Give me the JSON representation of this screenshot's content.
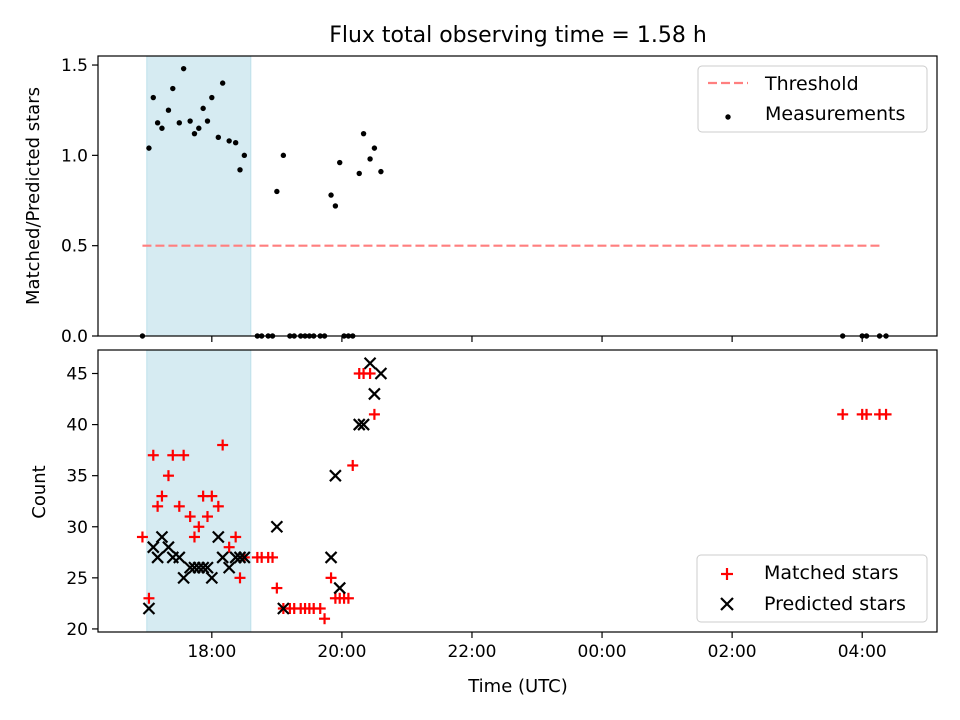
{
  "figure": {
    "title": "Flux total observing time = 1.58 h"
  },
  "colors": {
    "highlight": "#add8e6",
    "threshold": "#ff7f7f",
    "measurement": "#000000",
    "matched": "#ff0000",
    "predicted": "#000000"
  },
  "chart_data": [
    {
      "type": "scatter",
      "ylabel": "Matched/Predicted stars",
      "ylim": [
        0,
        1.55
      ],
      "yticks": [
        0.0,
        0.5,
        1.0,
        1.5
      ],
      "ytick_labels": [
        "0.0",
        "0.5",
        "1.0",
        "1.5"
      ],
      "xlim_hours": [
        16.25,
        29.15
      ],
      "highlight_span": [
        "17:00",
        "18:36"
      ],
      "legend_position": "upper right",
      "threshold": {
        "name": "Threshold",
        "value": 0.5,
        "x_range": [
          "16:56",
          "28:18"
        ]
      },
      "series": [
        {
          "name": "Measurements",
          "points": [
            [
              "16:56",
              0.0
            ],
            [
              "17:02",
              1.04
            ],
            [
              "17:06",
              1.32
            ],
            [
              "17:10",
              1.18
            ],
            [
              "17:14",
              1.15
            ],
            [
              "17:20",
              1.25
            ],
            [
              "17:24",
              1.37
            ],
            [
              "17:30",
              1.18
            ],
            [
              "17:34",
              1.48
            ],
            [
              "17:40",
              1.19
            ],
            [
              "17:44",
              1.12
            ],
            [
              "17:48",
              1.15
            ],
            [
              "17:52",
              1.26
            ],
            [
              "17:56",
              1.19
            ],
            [
              "18:00",
              1.32
            ],
            [
              "18:06",
              1.1
            ],
            [
              "18:10",
              1.4
            ],
            [
              "18:16",
              1.08
            ],
            [
              "18:22",
              1.07
            ],
            [
              "18:26",
              0.92
            ],
            [
              "18:30",
              1.0
            ],
            [
              "18:42",
              0.0
            ],
            [
              "18:46",
              0.0
            ],
            [
              "18:52",
              0.0
            ],
            [
              "18:56",
              0.0
            ],
            [
              "19:00",
              0.8
            ],
            [
              "19:06",
              1.0
            ],
            [
              "19:12",
              0.0
            ],
            [
              "19:16",
              0.0
            ],
            [
              "19:22",
              0.0
            ],
            [
              "19:26",
              0.0
            ],
            [
              "19:30",
              0.0
            ],
            [
              "19:34",
              0.0
            ],
            [
              "19:40",
              0.0
            ],
            [
              "19:44",
              0.0
            ],
            [
              "19:50",
              0.78
            ],
            [
              "19:54",
              0.72
            ],
            [
              "19:58",
              0.96
            ],
            [
              "20:02",
              0.0
            ],
            [
              "20:06",
              0.0
            ],
            [
              "20:10",
              0.0
            ],
            [
              "20:16",
              0.9
            ],
            [
              "20:20",
              1.12
            ],
            [
              "20:26",
              0.98
            ],
            [
              "20:30",
              1.04
            ],
            [
              "20:36",
              0.91
            ],
            [
              "27:42",
              0.0
            ],
            [
              "28:00",
              0.0
            ],
            [
              "28:04",
              0.0
            ],
            [
              "28:16",
              0.0
            ],
            [
              "28:22",
              0.0
            ]
          ]
        }
      ]
    },
    {
      "type": "scatter",
      "xlabel": "Time (UTC)",
      "ylabel": "Count",
      "ylim": [
        19.7,
        47.3
      ],
      "yticks": [
        20,
        25,
        30,
        35,
        40,
        45
      ],
      "ytick_labels": [
        "20",
        "25",
        "30",
        "35",
        "40",
        "45"
      ],
      "xlim_hours": [
        16.25,
        29.15
      ],
      "xticks_hours": [
        18,
        20,
        22,
        24,
        26,
        28
      ],
      "xtick_labels": [
        "18:00",
        "20:00",
        "22:00",
        "00:00",
        "02:00",
        "04:00"
      ],
      "highlight_span": [
        "17:00",
        "18:36"
      ],
      "legend_position": "lower right",
      "series": [
        {
          "name": "Matched stars",
          "marker": "plus",
          "points": [
            [
              "16:56",
              29
            ],
            [
              "17:02",
              23
            ],
            [
              "17:06",
              37
            ],
            [
              "17:10",
              32
            ],
            [
              "17:14",
              33
            ],
            [
              "17:20",
              35
            ],
            [
              "17:24",
              37
            ],
            [
              "17:30",
              32
            ],
            [
              "17:34",
              37
            ],
            [
              "17:40",
              31
            ],
            [
              "17:44",
              29
            ],
            [
              "17:48",
              30
            ],
            [
              "17:52",
              33
            ],
            [
              "17:56",
              31
            ],
            [
              "18:00",
              33
            ],
            [
              "18:06",
              32
            ],
            [
              "18:10",
              38
            ],
            [
              "18:16",
              28
            ],
            [
              "18:22",
              29
            ],
            [
              "18:26",
              25
            ],
            [
              "18:30",
              27
            ],
            [
              "18:42",
              27
            ],
            [
              "18:46",
              27
            ],
            [
              "18:52",
              27
            ],
            [
              "18:56",
              27
            ],
            [
              "19:00",
              24
            ],
            [
              "19:06",
              22
            ],
            [
              "19:12",
              22
            ],
            [
              "19:16",
              22
            ],
            [
              "19:22",
              22
            ],
            [
              "19:26",
              22
            ],
            [
              "19:30",
              22
            ],
            [
              "19:34",
              22
            ],
            [
              "19:40",
              22
            ],
            [
              "19:44",
              21
            ],
            [
              "19:50",
              25
            ],
            [
              "19:54",
              23
            ],
            [
              "19:58",
              23
            ],
            [
              "20:02",
              23
            ],
            [
              "20:06",
              23
            ],
            [
              "20:10",
              36
            ],
            [
              "20:16",
              45
            ],
            [
              "20:20",
              45
            ],
            [
              "20:26",
              45
            ],
            [
              "20:30",
              41
            ],
            [
              "27:42",
              41
            ],
            [
              "28:00",
              41
            ],
            [
              "28:04",
              41
            ],
            [
              "28:16",
              41
            ],
            [
              "28:22",
              41
            ]
          ]
        },
        {
          "name": "Predicted stars",
          "marker": "x",
          "points": [
            [
              "17:02",
              22
            ],
            [
              "17:06",
              28
            ],
            [
              "17:10",
              27
            ],
            [
              "17:14",
              29
            ],
            [
              "17:20",
              28
            ],
            [
              "17:24",
              27
            ],
            [
              "17:30",
              27
            ],
            [
              "17:34",
              25
            ],
            [
              "17:40",
              26
            ],
            [
              "17:44",
              26
            ],
            [
              "17:48",
              26
            ],
            [
              "17:52",
              26
            ],
            [
              "17:56",
              26
            ],
            [
              "18:00",
              25
            ],
            [
              "18:06",
              29
            ],
            [
              "18:10",
              27
            ],
            [
              "18:16",
              26
            ],
            [
              "18:22",
              27
            ],
            [
              "18:26",
              27
            ],
            [
              "18:30",
              27
            ],
            [
              "19:00",
              30
            ],
            [
              "19:06",
              22
            ],
            [
              "19:50",
              27
            ],
            [
              "19:54",
              35
            ],
            [
              "19:58",
              24
            ],
            [
              "20:16",
              40
            ],
            [
              "20:20",
              40
            ],
            [
              "20:26",
              46
            ],
            [
              "20:30",
              43
            ],
            [
              "20:36",
              45
            ]
          ]
        }
      ]
    }
  ]
}
